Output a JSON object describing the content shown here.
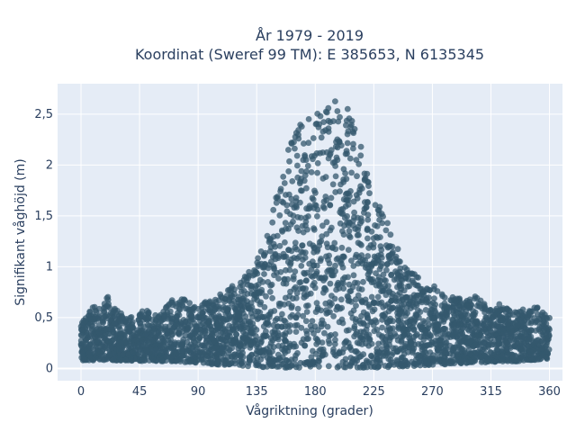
{
  "chart_data": {
    "type": "scatter",
    "title": [
      "År 1979 - 2019",
      "Koordinat (Sweref 99 TM): E 385653, N 6135345"
    ],
    "xlabel": "Vågriktning (grader)",
    "ylabel": "Signifikant våghöjd (m)",
    "xlim": [
      -18,
      370
    ],
    "ylim": [
      -0.12,
      2.8
    ],
    "x_ticks": [
      0,
      45,
      90,
      135,
      180,
      225,
      270,
      315,
      360
    ],
    "x_tick_labels": [
      "0",
      "45",
      "90",
      "135",
      "180",
      "225",
      "270",
      "315",
      "360"
    ],
    "y_ticks": [
      0,
      0.5,
      1,
      1.5,
      2,
      2.5
    ],
    "y_tick_labels": [
      "0",
      "0,5",
      "1",
      "1,5",
      "2",
      "2,5"
    ],
    "grid": true,
    "legend": "none",
    "marker_color": "#34586e",
    "background_color": "#e5ecf6",
    "series": [
      {
        "x": [
          0,
          5,
          10,
          15,
          20,
          25,
          30,
          35,
          40,
          45,
          50,
          55,
          60,
          65,
          70,
          75,
          80,
          85,
          90,
          95,
          100,
          105,
          110,
          115,
          120,
          125,
          130,
          135,
          140,
          145,
          150,
          155,
          160,
          165,
          170,
          175,
          180,
          185,
          190,
          195,
          200,
          205,
          210,
          215,
          220,
          225,
          230,
          235,
          240,
          245,
          250,
          255,
          260,
          265,
          270,
          275,
          280,
          285,
          290,
          295,
          300,
          305,
          310,
          315,
          320,
          325,
          330,
          335,
          340,
          345,
          350,
          355,
          360
        ],
        "y_min": [
          0.08,
          0.08,
          0.08,
          0.08,
          0.08,
          0.08,
          0.08,
          0.08,
          0.07,
          0.07,
          0.07,
          0.07,
          0.07,
          0.07,
          0.07,
          0.07,
          0.06,
          0.06,
          0.05,
          0.05,
          0.04,
          0.04,
          0.03,
          0.03,
          0.03,
          0.02,
          0.02,
          0.02,
          0.01,
          0.01,
          0.01,
          0.01,
          0.01,
          0.01,
          0.01,
          0.01,
          0.01,
          0.01,
          0.01,
          0.01,
          0.01,
          0.01,
          0.01,
          0.01,
          0.01,
          0.01,
          0.01,
          0.01,
          0.02,
          0.02,
          0.02,
          0.02,
          0.03,
          0.03,
          0.03,
          0.04,
          0.04,
          0.05,
          0.05,
          0.05,
          0.06,
          0.06,
          0.06,
          0.06,
          0.07,
          0.07,
          0.07,
          0.07,
          0.08,
          0.08,
          0.08,
          0.09,
          0.09
        ],
        "y_max": [
          0.45,
          0.55,
          0.62,
          0.58,
          0.72,
          0.6,
          0.55,
          0.52,
          0.5,
          0.55,
          0.58,
          0.52,
          0.55,
          0.6,
          0.7,
          0.65,
          0.72,
          0.62,
          0.6,
          0.65,
          0.68,
          0.72,
          0.75,
          0.8,
          0.85,
          0.9,
          1.0,
          1.1,
          1.25,
          1.45,
          1.7,
          2.0,
          2.2,
          2.35,
          2.45,
          2.5,
          2.52,
          2.55,
          2.6,
          2.63,
          2.65,
          2.62,
          2.45,
          2.2,
          1.95,
          1.75,
          1.6,
          1.45,
          1.3,
          1.15,
          1.0,
          0.95,
          0.9,
          0.85,
          0.82,
          0.78,
          0.75,
          0.72,
          0.7,
          0.68,
          0.72,
          0.7,
          0.65,
          0.6,
          0.65,
          0.6,
          0.58,
          0.55,
          0.6,
          0.58,
          0.62,
          0.55,
          0.5
        ]
      }
    ]
  }
}
